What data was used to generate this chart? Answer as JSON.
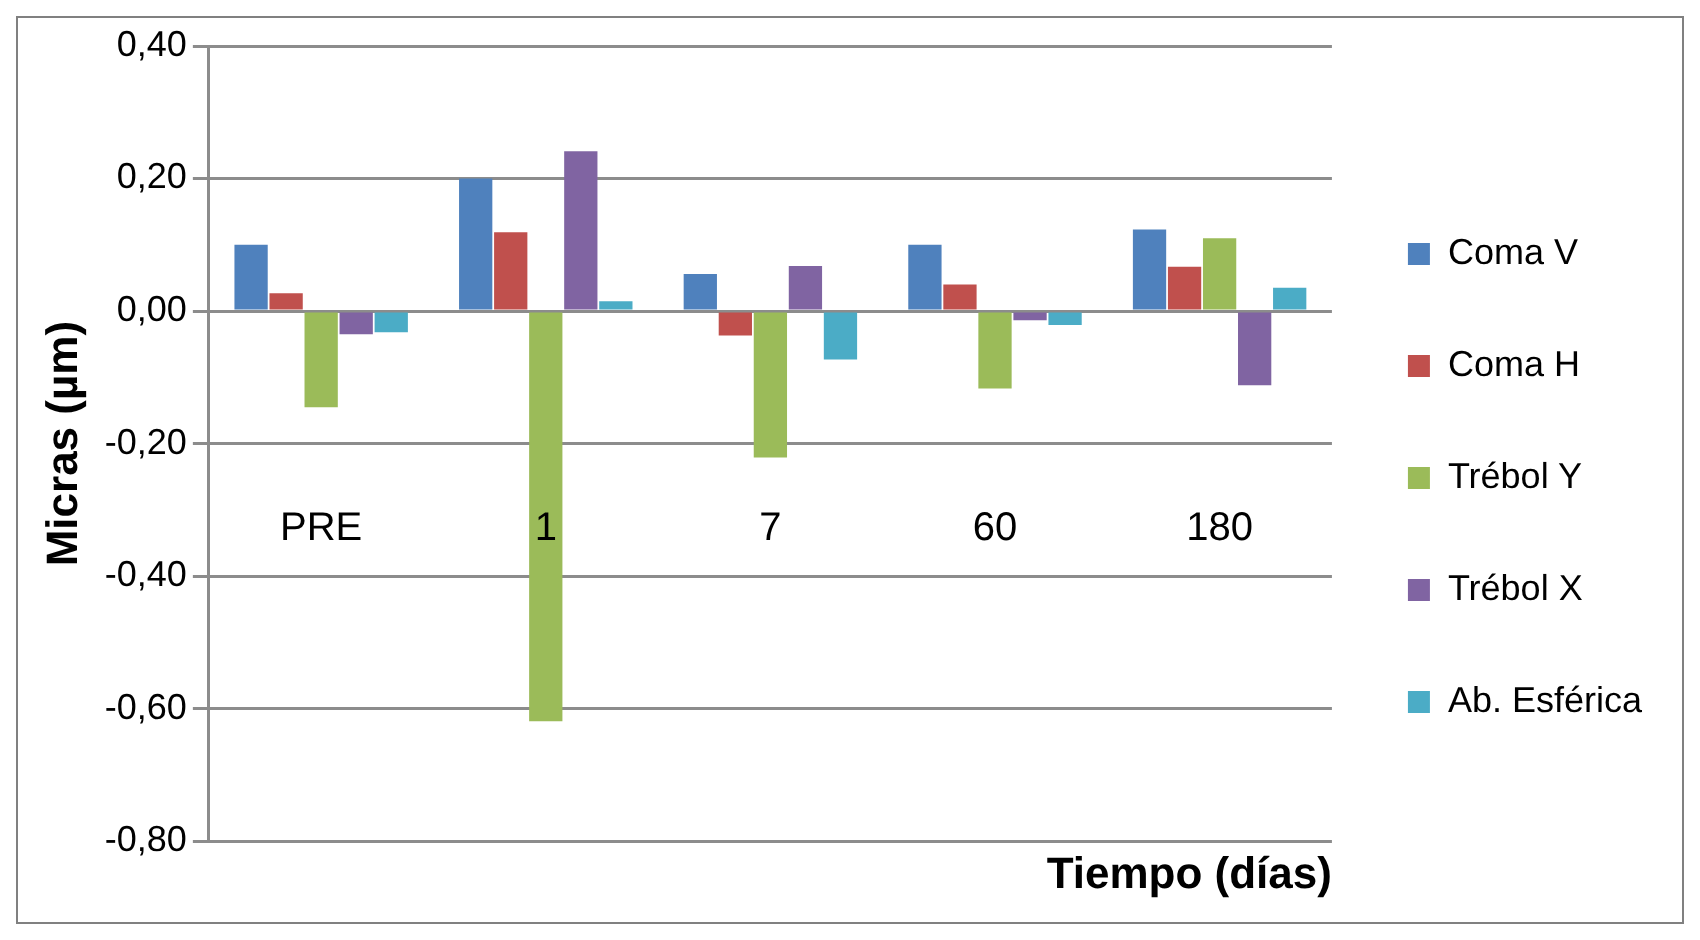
{
  "chart_data": {
    "type": "bar",
    "xlabel": "Tiempo (días)",
    "ylabel": "Micras (µm)",
    "categories": [
      "PRE",
      "1",
      "7",
      "60",
      "180"
    ],
    "series": [
      {
        "name": "Coma V",
        "color": "#4f81bd",
        "values": [
          0.1,
          0.2,
          0.056,
          0.1,
          0.123
        ]
      },
      {
        "name": "Coma H",
        "color": "#c0504d",
        "values": [
          0.027,
          0.119,
          -0.037,
          0.04,
          0.067
        ]
      },
      {
        "name": "Trébol Y",
        "color": "#9bbb59",
        "values": [
          -0.145,
          -0.619,
          -0.221,
          -0.117,
          0.11
        ]
      },
      {
        "name": "Trébol X",
        "color": "#8064a2",
        "values": [
          -0.035,
          0.241,
          0.068,
          -0.014,
          -0.112
        ]
      },
      {
        "name": "Ab. Esférica",
        "color": "#4bacc6",
        "values": [
          -0.032,
          0.015,
          -0.073,
          -0.021,
          0.035
        ]
      }
    ],
    "ylim": [
      -0.8,
      0.4
    ],
    "yticks": [
      {
        "value": -0.8,
        "label": "-0,80"
      },
      {
        "value": -0.6,
        "label": "-0,60"
      },
      {
        "value": -0.4,
        "label": "-0,40"
      },
      {
        "value": -0.2,
        "label": "-0,20"
      },
      {
        "value": 0,
        "label": "0,00"
      },
      {
        "value": 0.2,
        "label": "0,20"
      },
      {
        "value": 0.4,
        "label": "0,40"
      }
    ],
    "grid": "y",
    "legend": "right"
  }
}
